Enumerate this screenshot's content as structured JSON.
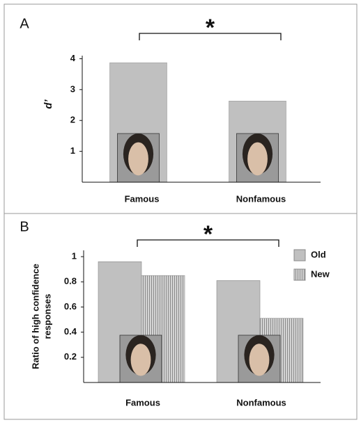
{
  "chart_data": [
    {
      "type": "bar",
      "panel": "A",
      "annotation": "*",
      "ylabel": "d’",
      "categories": [
        "Famous",
        "Nonfamous"
      ],
      "values": [
        3.87,
        2.63
      ],
      "color": "#c0c0c0",
      "ylim": [
        0,
        4.1
      ],
      "yticks": [
        1,
        2,
        3,
        4
      ],
      "grid": false
    },
    {
      "type": "grouped_bar",
      "panel": "B",
      "annotation": "*",
      "ylabel": [
        "Ratio of high confidence",
        "responses"
      ],
      "categories": [
        "Famous",
        "Nonfamous"
      ],
      "series": [
        {
          "name": "Old",
          "color": "#c0c0c0",
          "hatch": "none",
          "values": [
            0.96,
            0.81
          ]
        },
        {
          "name": "New",
          "color": "#c0c0c0",
          "hatch": "vertical",
          "values": [
            0.85,
            0.51
          ]
        }
      ],
      "ylim": [
        0,
        1.05
      ],
      "yticks": [
        0.2,
        0.4,
        0.6,
        0.8,
        1
      ],
      "legend": "top-right",
      "grid": false
    }
  ]
}
